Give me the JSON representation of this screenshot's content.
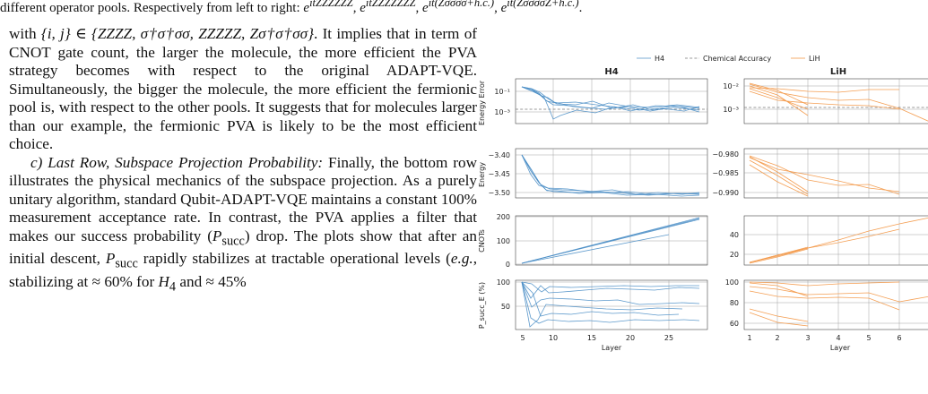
{
  "caption": {
    "prefix": "different operator pools. Respectively from left to right: ",
    "item_1": "e",
    "item_1_sup": "itẐẐẐẐẐẐ",
    "sep_1": ", ",
    "item_2": "e",
    "item_2_sup": "itẐẐẐẐẐẐẐ",
    "sep_2": ", ",
    "item_3": "e",
    "item_3_sup": "it(Ẑσ̂σ̂σ̂σ̂+h.c.)",
    "sep_3": ", ",
    "item_4": "e",
    "item_4_sup": "it(Ẑσ̂σ̂σ̂σ̂Ẑ+h.c.)",
    "suffix": "."
  },
  "body": {
    "p1_1": "with ",
    "p1_math": "{i, j} ∈ {ZZZZ, σ†σ†σσ, ZZZZZ, Zσ†σ†σσ}",
    "p1_2": ". It implies that in term of CNOT gate count, the larger the molecule, the more efficient the PVA strategy becomes with respect to the original ADAPT-VQE. Simultaneously, the bigger the molecule, the more efficient the fermionic pool is, with respect to the other pools. It suggests that for molecules larger than our example, the fermionic PVA is likely to be the most efficient choice.",
    "p2_label": "c) Last Row, Subspace Projection Probability:",
    "p2_1": " Finally, the bottom row illustrates the physical mechanics of the subspace projection. As a purely unitary algorithm, standard Qubit-ADAPT-VQE maintains a constant ",
    "p2_percent": "100%",
    "p2_2": " measurement acceptance rate. In contrast, the PVA applies a filter that makes our success probability (",
    "p2_psucc": "P",
    "p2_psucc_sub": "succ",
    "p2_3": ") drop. The plots show that after an initial descent, ",
    "p2_psucc2": "P",
    "p2_psucc2_sub": "succ",
    "p2_4": " rapidly stabilizes at tractable operational levels (",
    "p2_eg": "e.g.",
    "p2_5": ", stabilizing at ≈ 60% for ",
    "p2_h4": "H",
    "p2_h4_sub": "4",
    "p2_6": " and ≈ 45%"
  },
  "figure": {
    "legend": {
      "h4": "H4",
      "accuracy": "Chemical Accuracy",
      "lih": "LiH"
    },
    "titles": [
      "H4",
      "LiH"
    ],
    "xlabel": "Layer",
    "ylabels": [
      "Energy Error",
      "Energy",
      "CNOTs",
      "P_succ_E (%)"
    ],
    "h4_xticks": [
      "5",
      "10",
      "15",
      "20",
      "25"
    ],
    "lih_xticks": [
      "1",
      "2",
      "3",
      "4",
      "5",
      "6",
      "7"
    ],
    "error_h4_ticks": [
      "10⁻¹",
      "10⁻³"
    ],
    "error_lih_ticks": [
      "10⁻²",
      "10⁻³"
    ],
    "energy_h4_ticks": [
      "−3.40",
      "−3.45",
      "−3.50"
    ],
    "energy_lih_ticks": [
      "−0.980",
      "−0.985",
      "−0.990"
    ],
    "cnot_h4_ticks": [
      "200",
      "100",
      "0"
    ],
    "cnot_lih_ticks": [
      "40",
      "20"
    ],
    "psucc_h4_ticks": [
      "100",
      "50"
    ],
    "psucc_lih_ticks": [
      "100",
      "80",
      "60"
    ],
    "colors": {
      "h4": "#4c8fc7",
      "lih": "#f39a4b",
      "chemical_accuracy": "#777777"
    }
  },
  "chart_data": [
    {
      "type": "line",
      "title": "H4",
      "xlabel": "",
      "ylabel": "Energy Error",
      "series": [
        {
          "name": "H4",
          "x": [
            1,
            25
          ],
          "y": [
            0.1,
            0.001
          ]
        }
      ],
      "reference_line": {
        "name": "Chemical Accuracy",
        "value": 0.0016
      },
      "log_scale": true,
      "grid": true
    },
    {
      "type": "line",
      "title": "LiH",
      "xlabel": "",
      "ylabel": "",
      "series": [
        {
          "name": "LiH",
          "x": [
            1,
            7
          ],
          "y": [
            0.01,
            0.00025
          ]
        }
      ],
      "reference_line": {
        "name": "Chemical Accuracy",
        "value": 0.0016
      },
      "log_scale": true,
      "grid": true
    },
    {
      "type": "line",
      "title": "",
      "xlabel": "",
      "ylabel": "Energy",
      "series": [
        {
          "name": "H4",
          "x": [
            1,
            5,
            25
          ],
          "y": [
            -3.4,
            -3.52,
            -3.53
          ]
        }
      ],
      "ylim": [
        -3.54,
        -3.38
      ],
      "grid": true
    },
    {
      "type": "line",
      "title": "",
      "xlabel": "",
      "ylabel": "",
      "series": [
        {
          "name": "LiH",
          "x": [
            1,
            7
          ],
          "y": [
            -0.9782,
            -0.9905
          ]
        }
      ],
      "ylim": [
        -0.992,
        -0.977
      ],
      "grid": true
    },
    {
      "type": "line",
      "title": "",
      "xlabel": "",
      "ylabel": "CNOTs",
      "series": [
        {
          "name": "H4",
          "x": [
            1,
            25
          ],
          "y": [
            8,
            198
          ]
        }
      ],
      "ylim": [
        0,
        205
      ],
      "grid": true
    },
    {
      "type": "line",
      "title": "",
      "xlabel": "",
      "ylabel": "",
      "series": [
        {
          "name": "LiH",
          "x": [
            1,
            7
          ],
          "y": [
            9,
            52
          ]
        }
      ],
      "ylim": [
        5,
        55
      ],
      "grid": true
    },
    {
      "type": "line",
      "title": "",
      "xlabel": "Layer",
      "ylabel": "P_succ_E (%)",
      "series": [
        {
          "name": "H4",
          "x": [
            1,
            25
          ],
          "y": [
            100,
            20
          ]
        }
      ],
      "ylim": [
        10,
        105
      ],
      "grid": true
    },
    {
      "type": "line",
      "title": "",
      "xlabel": "Layer",
      "ylabel": "",
      "series": [
        {
          "name": "LiH",
          "x": [
            1,
            7
          ],
          "y": [
            100,
            87
          ]
        }
      ],
      "ylim": [
        55,
        102
      ],
      "grid": true
    }
  ]
}
